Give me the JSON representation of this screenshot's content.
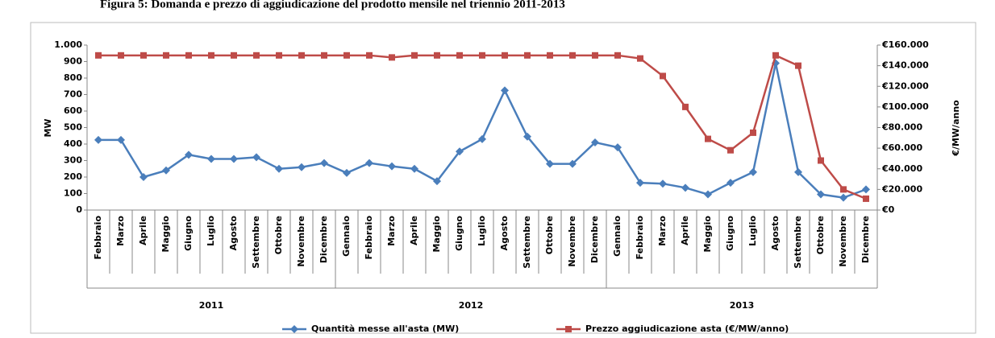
{
  "chart_data": {
    "type": "line",
    "title": "Figura 5: Domanda e prezzo di aggiudicazione del prodotto mensile nel triennio 2011-2013",
    "y_label": "MW",
    "y2_label": "€/MW/anno",
    "categories": [
      "Febbraio",
      "Marzo",
      "Aprile",
      "Maggio",
      "Giugno",
      "Luglio",
      "Agosto",
      "Settembre",
      "Ottobre",
      "Novembre",
      "Dicembre",
      "Gennaio",
      "Febbraio",
      "Marzo",
      "Aprile",
      "Maggio",
      "Giugno",
      "Luglio",
      "Agosto",
      "Settembre",
      "Ottobre",
      "Novembre",
      "Dicembre",
      "Gennaio",
      "Febbraio",
      "Marzo",
      "Aprile",
      "Maggio",
      "Giugno",
      "Luglio",
      "Agosto",
      "Settembre",
      "Ottobre",
      "Novembre",
      "Dicembre"
    ],
    "category_groups": [
      {
        "label": "2011",
        "size": 11
      },
      {
        "label": "2012",
        "size": 12
      },
      {
        "label": "2013",
        "size": 12
      }
    ],
    "series": [
      {
        "name": "Quantità messe all'asta (MW)",
        "color": "#4a7ebb",
        "marker": "diamond",
        "values": [
          425,
          425,
          200,
          240,
          335,
          310,
          310,
          320,
          250,
          260,
          285,
          225,
          285,
          265,
          250,
          175,
          355,
          430,
          725,
          445,
          280,
          280,
          410,
          380,
          165,
          160,
          135,
          95,
          165,
          230,
          890,
          230,
          95,
          75,
          125
        ]
      },
      {
        "name": "Prezzo aggiudicazione asta (€/MW/anno)",
        "color": "#be4b48",
        "marker": "square",
        "axis": "y2",
        "values": [
          150000,
          150000,
          150000,
          150000,
          150000,
          150000,
          150000,
          150000,
          150000,
          150000,
          150000,
          150000,
          150000,
          148000,
          150000,
          150000,
          150000,
          150000,
          150000,
          150000,
          150000,
          150000,
          150000,
          150000,
          147000,
          130000,
          100000,
          69000,
          58000,
          75000,
          150000,
          140000,
          48000,
          20000,
          11000
        ]
      }
    ],
    "ylim": [
      0,
      1000
    ],
    "yticks": [
      0,
      100,
      200,
      300,
      400,
      500,
      600,
      700,
      800,
      900,
      {
        "value": 1000,
        "label": "1.000"
      }
    ],
    "y2lim": [
      0,
      160000
    ],
    "y2ticks": [
      {
        "value": 0,
        "label": "€0"
      },
      {
        "value": 20000,
        "label": "€20.000"
      },
      {
        "value": 40000,
        "label": "€40.000"
      },
      {
        "value": 60000,
        "label": "€60.000"
      },
      {
        "value": 80000,
        "label": "€80.000"
      },
      {
        "value": 100000,
        "label": "€100.000"
      },
      {
        "value": 120000,
        "label": "€120.000"
      },
      {
        "value": 140000,
        "label": "€140.000"
      },
      {
        "value": 160000,
        "label": "€160.000"
      }
    ]
  }
}
